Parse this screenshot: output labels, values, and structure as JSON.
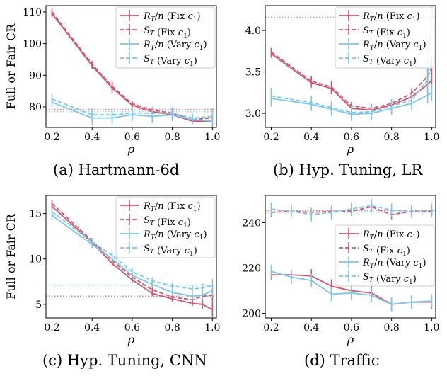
{
  "colors": {
    "fix": "#d1576e",
    "vary": "#7cc7ea",
    "fix_ref": "#e07a8c",
    "vary_ref": "#9fd7f0",
    "grey_ref": "#aaaaaa"
  },
  "chart_data": [
    {
      "type": "line",
      "caption": "(a) Hartmann-6d",
      "xlabel": "ρ",
      "ylabel": "Full or Fair CR",
      "xlim": [
        0.17,
        1.02
      ],
      "ylim": [
        73.5,
        112
      ],
      "xticks": [
        0.2,
        0.4,
        0.6,
        0.8,
        1.0
      ],
      "xtick_labels": [
        "0.2",
        "0.4",
        "0.6",
        "0.8",
        "1.0"
      ],
      "yticks": [
        80,
        90,
        100,
        110
      ],
      "ytick_labels": [
        "80",
        "90",
        "100",
        "110"
      ],
      "legend_position": "top-right",
      "x": [
        0.2,
        0.4,
        0.5,
        0.6,
        0.7,
        0.8,
        0.9,
        1.0
      ],
      "series": [
        {
          "name": "R_T/n (Fix c_1)",
          "style": "solid",
          "color": "fix",
          "values": [
            109.5,
            93,
            86,
            80.5,
            78.5,
            77.5,
            75.5,
            75.5
          ],
          "err": [
            1.2,
            1.0,
            1.5,
            1.0,
            1.0,
            1.0,
            1.0,
            1.5
          ]
        },
        {
          "name": "S_T (Fix c_1)",
          "style": "dashed",
          "color": "fix",
          "values": [
            110,
            93.5,
            86.5,
            81,
            79,
            78,
            76,
            76.5
          ],
          "err": [
            1.2,
            1.0,
            1.5,
            1.0,
            1.0,
            1.0,
            1.0,
            1.5
          ]
        },
        {
          "name": "R_T/n (Vary c_1)",
          "style": "solid",
          "color": "vary",
          "values": [
            81.5,
            76.5,
            76.5,
            77.5,
            77,
            77.5,
            76,
            75.5
          ],
          "err": [
            1.5,
            2.0,
            2.0,
            2.0,
            2.0,
            2.0,
            1.5,
            2.5
          ]
        },
        {
          "name": "S_T (Vary c_1)",
          "style": "dashed",
          "color": "vary",
          "values": [
            82.5,
            77.5,
            77.5,
            78,
            78,
            78,
            76.5,
            77
          ],
          "err": [
            1.5,
            2.0,
            2.0,
            2.0,
            2.0,
            2.0,
            1.5,
            2.5
          ]
        }
      ],
      "ref_lines": [
        {
          "y": 79.2,
          "color": "fix_ref"
        },
        {
          "y": 78.5,
          "color": "vary_ref"
        }
      ]
    },
    {
      "type": "line",
      "caption": "(b) Hyp. Tuning, LR",
      "xlabel": "ρ",
      "ylabel": "",
      "xlim": [
        0.17,
        1.02
      ],
      "ylim": [
        2.83,
        4.3
      ],
      "xticks": [
        0.2,
        0.4,
        0.6,
        0.8,
        1.0
      ],
      "xtick_labels": [
        "0.2",
        "0.4",
        "0.6",
        "0.8",
        "1.0"
      ],
      "yticks": [
        3.0,
        3.5,
        4.0
      ],
      "ytick_labels": [
        "3.0",
        "3.5",
        "4.0"
      ],
      "legend_position": "top-right",
      "x": [
        0.2,
        0.4,
        0.5,
        0.6,
        0.7,
        0.8,
        0.9,
        0.98,
        1.0
      ],
      "series": [
        {
          "name": "R_T/n (Fix c_1)",
          "style": "solid",
          "color": "fix",
          "values": [
            3.72,
            3.37,
            3.3,
            3.06,
            3.04,
            3.1,
            3.2,
            3.35,
            3.4
          ],
          "err": [
            0.05,
            0.06,
            0.07,
            0.05,
            0.05,
            0.05,
            0.06,
            0.1,
            0.12
          ]
        },
        {
          "name": "S_T (Fix c_1)",
          "style": "dashed",
          "color": "fix",
          "values": [
            3.74,
            3.39,
            3.32,
            3.09,
            3.06,
            3.12,
            3.24,
            3.45,
            3.55
          ],
          "err": [
            0.05,
            0.06,
            0.07,
            0.05,
            0.05,
            0.05,
            0.06,
            0.1,
            0.12
          ]
        },
        {
          "name": "R_T/n (Vary c_1)",
          "style": "solid",
          "color": "vary",
          "values": [
            3.18,
            3.11,
            3.05,
            2.99,
            3.0,
            3.06,
            3.12,
            3.22,
            3.25
          ],
          "err": [
            0.1,
            0.08,
            0.08,
            0.08,
            0.08,
            0.08,
            0.08,
            0.1,
            0.1
          ]
        },
        {
          "name": "S_T (Vary c_1)",
          "style": "dashed",
          "color": "vary",
          "values": [
            3.21,
            3.13,
            3.07,
            3.01,
            3.02,
            3.09,
            3.16,
            3.4,
            4.25
          ],
          "err": [
            0.1,
            0.08,
            0.08,
            0.08,
            0.08,
            0.08,
            0.08,
            0.15,
            0.2
          ]
        }
      ],
      "ref_lines": [
        {
          "y": 4.16,
          "color": "grey_ref"
        }
      ]
    },
    {
      "type": "line",
      "caption": "(c) Hyp. Tuning, CNN",
      "xlabel": "ρ",
      "ylabel": "Full or Fair CR",
      "xlim": [
        0.17,
        1.02
      ],
      "ylim": [
        3.5,
        17
      ],
      "xticks": [
        0.2,
        0.4,
        0.6,
        0.8,
        1.0
      ],
      "xtick_labels": [
        "0.2",
        "0.4",
        "0.6",
        "0.8",
        "1.0"
      ],
      "yticks": [
        5,
        10,
        15
      ],
      "ytick_labels": [
        "5",
        "10",
        "15"
      ],
      "legend_position": "top-right",
      "x": [
        0.2,
        0.4,
        0.5,
        0.6,
        0.7,
        0.8,
        0.9,
        0.95,
        1.0
      ],
      "series": [
        {
          "name": "R_T/n (Fix c_1)",
          "style": "solid",
          "color": "fix",
          "values": [
            15.8,
            11.8,
            9.5,
            7.7,
            6.2,
            5.6,
            5.1,
            5.0,
            4.4
          ],
          "err": [
            0.4,
            0.3,
            0.3,
            0.3,
            0.3,
            0.3,
            0.3,
            0.5,
            0.8
          ]
        },
        {
          "name": "S_T (Fix c_1)",
          "style": "dashed",
          "color": "fix",
          "values": [
            16.1,
            12.0,
            9.8,
            8.0,
            6.6,
            5.8,
            5.5,
            5.9,
            6.0
          ],
          "err": [
            0.4,
            0.3,
            0.3,
            0.3,
            0.3,
            0.3,
            0.3,
            0.5,
            0.8
          ]
        },
        {
          "name": "R_T/n (Vary c_1)",
          "style": "solid",
          "color": "vary",
          "values": [
            14.8,
            11.6,
            10.0,
            8.2,
            7.2,
            6.3,
            5.9,
            6.0,
            6.5
          ],
          "err": [
            0.5,
            0.4,
            0.4,
            0.4,
            0.4,
            0.4,
            0.4,
            0.5,
            0.7
          ]
        },
        {
          "name": "S_T (Vary c_1)",
          "style": "dashed",
          "color": "vary",
          "values": [
            15.2,
            11.9,
            10.4,
            8.6,
            7.6,
            7.0,
            6.7,
            6.8,
            7.1
          ],
          "err": [
            0.5,
            0.4,
            0.4,
            0.4,
            0.4,
            0.4,
            0.4,
            0.5,
            0.7
          ]
        }
      ],
      "ref_lines": [
        {
          "y": 7.1,
          "color": "vary_ref"
        },
        {
          "y": 5.9,
          "color": "fix_ref"
        }
      ]
    },
    {
      "type": "line",
      "caption": "(d) Traffic",
      "xlabel": "ρ",
      "ylabel": "",
      "xlim": [
        0.17,
        1.02
      ],
      "ylim": [
        198,
        252
      ],
      "xticks": [
        0.2,
        0.4,
        0.6,
        0.8,
        1.0
      ],
      "xtick_labels": [
        "0.2",
        "0.4",
        "0.6",
        "0.8",
        "1.0"
      ],
      "yticks": [
        200,
        220,
        240
      ],
      "ytick_labels": [
        "200",
        "220",
        "240"
      ],
      "legend_position": "center-right",
      "x": [
        0.2,
        0.3,
        0.4,
        0.5,
        0.6,
        0.7,
        0.8,
        0.9,
        1.0
      ],
      "series": [
        {
          "name": "R_T/n (Fix c_1)",
          "style": "solid",
          "color": "fix",
          "values": [
            217,
            217,
            216.5,
            212,
            210,
            209,
            204,
            205,
            205
          ],
          "err": [
            2,
            2,
            3,
            3,
            3,
            3,
            3,
            3,
            3
          ]
        },
        {
          "name": "S_T (Fix c_1)",
          "style": "dashed",
          "color": "fix",
          "values": [
            244.5,
            245,
            244.5,
            245,
            245,
            247,
            243.5,
            245,
            245
          ],
          "err": [
            2,
            2,
            2,
            2,
            2,
            2,
            2,
            2,
            2
          ]
        },
        {
          "name": "R_T/n (Vary c_1)",
          "style": "solid",
          "color": "vary",
          "values": [
            218.5,
            216,
            214.5,
            208.5,
            209,
            208,
            204,
            205,
            205.5
          ],
          "err": [
            3,
            3,
            3,
            3,
            3,
            3,
            3,
            3,
            3
          ]
        },
        {
          "name": "S_T (Vary c_1)",
          "style": "dashed",
          "color": "vary",
          "values": [
            246,
            245,
            243.5,
            244.5,
            246,
            247.5,
            245.5,
            245,
            245.5
          ],
          "err": [
            3,
            3,
            3,
            3,
            3,
            3,
            3,
            3,
            3
          ]
        }
      ],
      "ref_lines": [
        {
          "y": 245.3,
          "color": "fix_ref"
        },
        {
          "y": 244.6,
          "color": "vary_ref"
        }
      ]
    }
  ]
}
